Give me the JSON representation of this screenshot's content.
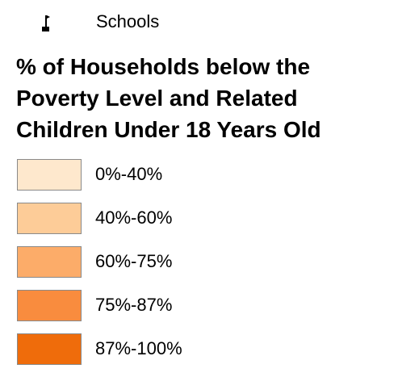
{
  "schools": {
    "icon": "school-flag-icon",
    "label": "Schools"
  },
  "legend": {
    "title_lines": [
      "% of Households below the",
      "Poverty Level and Related",
      "Children Under 18 Years Old"
    ],
    "classes": [
      {
        "label": "0%-40%",
        "color": "#fee8cd"
      },
      {
        "label": "40%-60%",
        "color": "#fdcc98"
      },
      {
        "label": "60%-75%",
        "color": "#fcac69"
      },
      {
        "label": "75%-87%",
        "color": "#f98c3e"
      },
      {
        "label": "87%-100%",
        "color": "#ef6c0b"
      }
    ]
  }
}
